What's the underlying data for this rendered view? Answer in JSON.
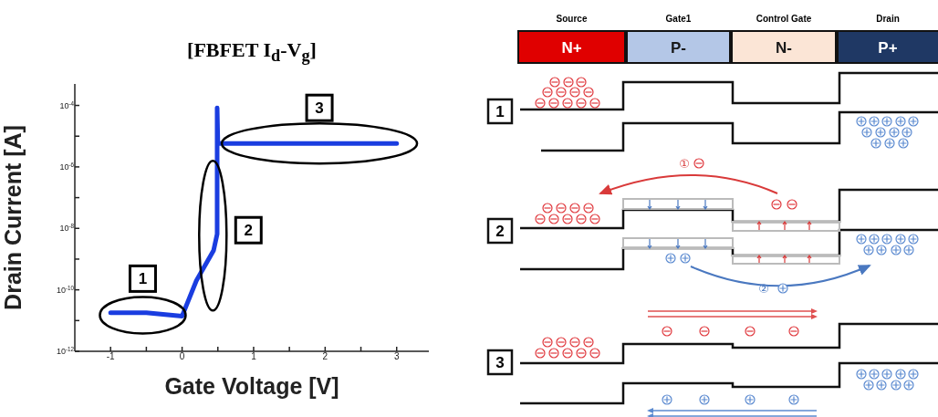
{
  "chart_data": [
    {
      "type": "line",
      "title": "[FBFET I$_{d}$-V$_{g}$]",
      "xlabel": "Gate Voltage [V]",
      "ylabel": "Drain Current [A]",
      "x": [
        -1,
        -0.5,
        0,
        0.2,
        0.44,
        0.49,
        0.49,
        0.5,
        1,
        2,
        3
      ],
      "series": [
        {
          "color": "#1a3de0",
          "values": [
            1.8e-11,
            1.8e-11,
            1.4e-11,
            2e-10,
            1.9e-09,
            6.5e-09,
            8.3e-05,
            5.8e-06,
            5.8e-06,
            5.8e-06,
            5.8e-06
          ]
        }
      ],
      "log": "y",
      "xlim": [
        -1.5,
        3.45
      ],
      "ylim": [
        1e-12,
        0.0005
      ],
      "xticks": [
        -1,
        {
          "value": -0.5,
          "label": null
        },
        0,
        {
          "value": 0.5,
          "label": null
        },
        1,
        {
          "value": 1.5,
          "label": null
        },
        2,
        {
          "value": 2.5,
          "label": null
        },
        3
      ],
      "yticks": [
        {
          "value": 1e-12,
          "label": "10$^{-12}$"
        },
        {
          "value": 1e-11,
          "label": null
        },
        {
          "value": 1e-10,
          "label": "10$^{-10}$"
        },
        {
          "value": 1e-09,
          "label": null
        },
        {
          "value": 1e-08,
          "label": "10$^{-8}$"
        },
        {
          "value": 1e-07,
          "label": null
        },
        {
          "value": 1e-06,
          "label": "10$^{-6}$"
        },
        {
          "value": 1e-05,
          "label": null
        },
        {
          "value": 0.0001,
          "label": "10$^{-4}$"
        }
      ],
      "line_style": "solid",
      "annotations": [
        {
          "text": "1",
          "x": -0.55,
          "y": 1.5e-11
        },
        {
          "text": "2",
          "x": 0.43,
          "y": 5.8e-09
        },
        {
          "text": "3",
          "x": 1.92,
          "y": 5.8e-06
        }
      ]
    },
    {
      "type": "other",
      "annotations": [
        "Source",
        "Gate1",
        "Control Gate",
        "Drain",
        "N+",
        "P-",
        "N-",
        "P+",
        "1",
        "2",
        "3",
        "①",
        "②"
      ]
    }
  ]
}
